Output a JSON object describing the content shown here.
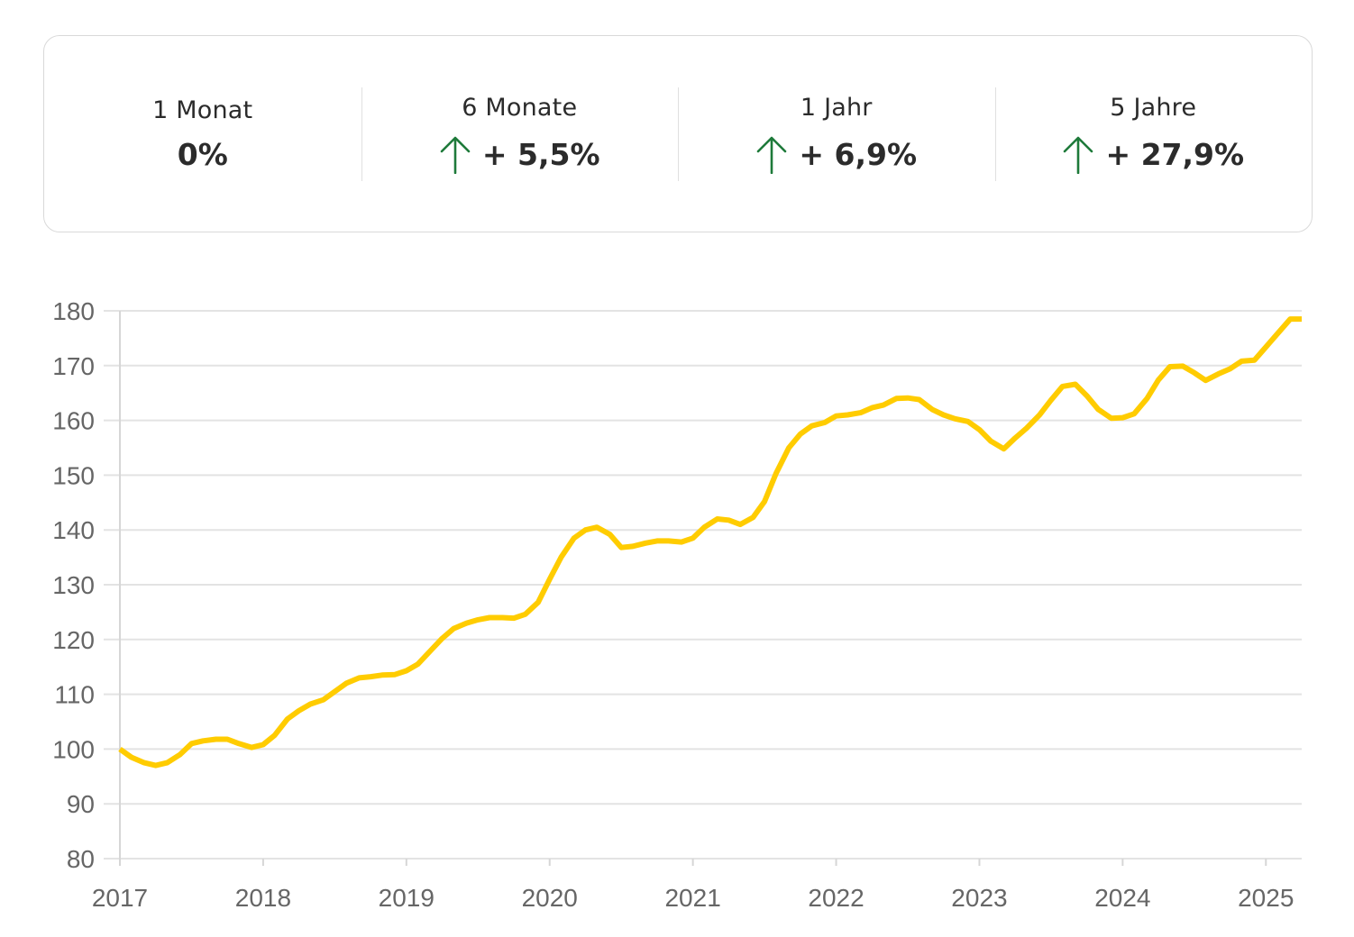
{
  "stats": [
    {
      "label": "1 Monat",
      "value": "0%",
      "arrow": false
    },
    {
      "label": "6 Monate",
      "value": "+ 5,5%",
      "arrow": true
    },
    {
      "label": "1 Jahr",
      "value": "+ 6,9%",
      "arrow": true
    },
    {
      "label": "5 Jahre",
      "value": "+ 27,9%",
      "arrow": true
    }
  ],
  "colors": {
    "line": "#FFCC00",
    "arrow": "#1e7a3a",
    "grid": "#e3e3e3"
  },
  "chart_data": {
    "type": "line",
    "title": "",
    "xlabel": "",
    "ylabel": "",
    "xlim": [
      2017,
      2025.25
    ],
    "ylim": [
      80,
      180
    ],
    "x_ticks": [
      "2017",
      "2018",
      "2019",
      "2020",
      "2021",
      "2022",
      "2023",
      "2024",
      "2025"
    ],
    "y_ticks": [
      "80",
      "90",
      "100",
      "110",
      "120",
      "130",
      "140",
      "150",
      "160",
      "170",
      "180"
    ],
    "grid": true,
    "series": [
      {
        "x": [
          2017.0,
          2017.08,
          2017.17,
          2017.25,
          2017.33,
          2017.42,
          2017.5,
          2017.58,
          2017.67,
          2017.75,
          2017.83,
          2017.92,
          2018.0,
          2018.08,
          2018.17,
          2018.25,
          2018.33,
          2018.42,
          2018.5,
          2018.58,
          2018.67,
          2018.75,
          2018.83,
          2018.92,
          2019.0,
          2019.08,
          2019.17,
          2019.25,
          2019.33,
          2019.42,
          2019.5,
          2019.58,
          2019.67,
          2019.75,
          2019.83,
          2019.92,
          2020.0,
          2020.08,
          2020.17,
          2020.25,
          2020.33,
          2020.42,
          2020.5,
          2020.58,
          2020.67,
          2020.75,
          2020.83,
          2020.92,
          2021.0,
          2021.08,
          2021.17,
          2021.25,
          2021.33,
          2021.42,
          2021.5,
          2021.58,
          2021.67,
          2021.75,
          2021.83,
          2021.92,
          2022.0,
          2022.08,
          2022.17,
          2022.25,
          2022.33,
          2022.42,
          2022.5,
          2022.58,
          2022.67,
          2022.75,
          2022.83,
          2022.92,
          2023.0,
          2023.08,
          2023.17,
          2023.25,
          2023.33,
          2023.42,
          2023.5,
          2023.58,
          2023.67,
          2023.75,
          2023.83,
          2023.92,
          2024.0,
          2024.08,
          2024.17,
          2024.25,
          2024.33,
          2024.42,
          2024.5,
          2024.58,
          2024.67,
          2024.75,
          2024.83,
          2024.92,
          2025.0,
          2025.08,
          2025.17,
          2025.25
        ],
        "values": [
          100,
          98.5,
          97.5,
          97,
          97.5,
          99,
          101,
          101.5,
          101.8,
          101.8,
          101,
          100.3,
          100.8,
          102.5,
          105.5,
          107,
          108.2,
          109,
          110.5,
          112,
          113,
          113.2,
          113.5,
          113.6,
          114.3,
          115.5,
          118,
          120.2,
          122,
          123,
          123.6,
          124,
          124,
          123.9,
          124.6,
          126.8,
          131,
          135,
          138.5,
          140,
          140.5,
          139.2,
          136.8,
          137,
          137.6,
          138,
          138,
          137.8,
          138.5,
          140.5,
          142,
          141.8,
          141,
          142.3,
          145.2,
          150.3,
          155,
          157.5,
          159,
          159.6,
          160.8,
          161,
          161.4,
          162.3,
          162.8,
          164,
          164.1,
          163.8,
          162,
          161,
          160.3,
          159.8,
          158.3,
          156.2,
          154.8,
          156.8,
          158.6,
          161,
          163.7,
          166.2,
          166.6,
          164.5,
          162,
          160.4,
          160.5,
          161.2,
          164,
          167.4,
          169.8,
          169.9,
          168.7,
          167.3,
          168.5,
          169.4,
          170.8,
          171,
          173.4,
          175.8,
          178.5,
          178.5
        ]
      }
    ]
  }
}
